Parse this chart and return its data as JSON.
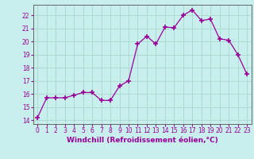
{
  "x": [
    0,
    1,
    2,
    3,
    4,
    5,
    6,
    7,
    8,
    9,
    10,
    11,
    12,
    13,
    14,
    15,
    16,
    17,
    18,
    19,
    20,
    21,
    22,
    23
  ],
  "y": [
    14.2,
    15.7,
    15.7,
    15.7,
    15.9,
    16.1,
    16.1,
    15.5,
    15.5,
    16.6,
    17.0,
    19.8,
    20.4,
    19.8,
    21.1,
    21.05,
    22.0,
    22.4,
    21.6,
    21.7,
    20.2,
    20.1,
    19.0,
    17.5
  ],
  "line_color": "#990099",
  "marker": "+",
  "marker_size": 5,
  "marker_lw": 1.2,
  "bg_color": "#c8eeed",
  "grid_color": "#a8d8cc",
  "xlabel": "Windchill (Refroidissement éolien,°C)",
  "ytick_labels": [
    "14",
    "15",
    "16",
    "17",
    "18",
    "19",
    "20",
    "21",
    "22"
  ],
  "ytick_values": [
    14,
    15,
    16,
    17,
    18,
    19,
    20,
    21,
    22
  ],
  "xlim": [
    -0.5,
    23.5
  ],
  "ylim": [
    13.7,
    22.8
  ],
  "tick_color": "#990099",
  "label_color": "#990099",
  "tick_fontsize": 5.5,
  "xlabel_fontsize": 6.5
}
